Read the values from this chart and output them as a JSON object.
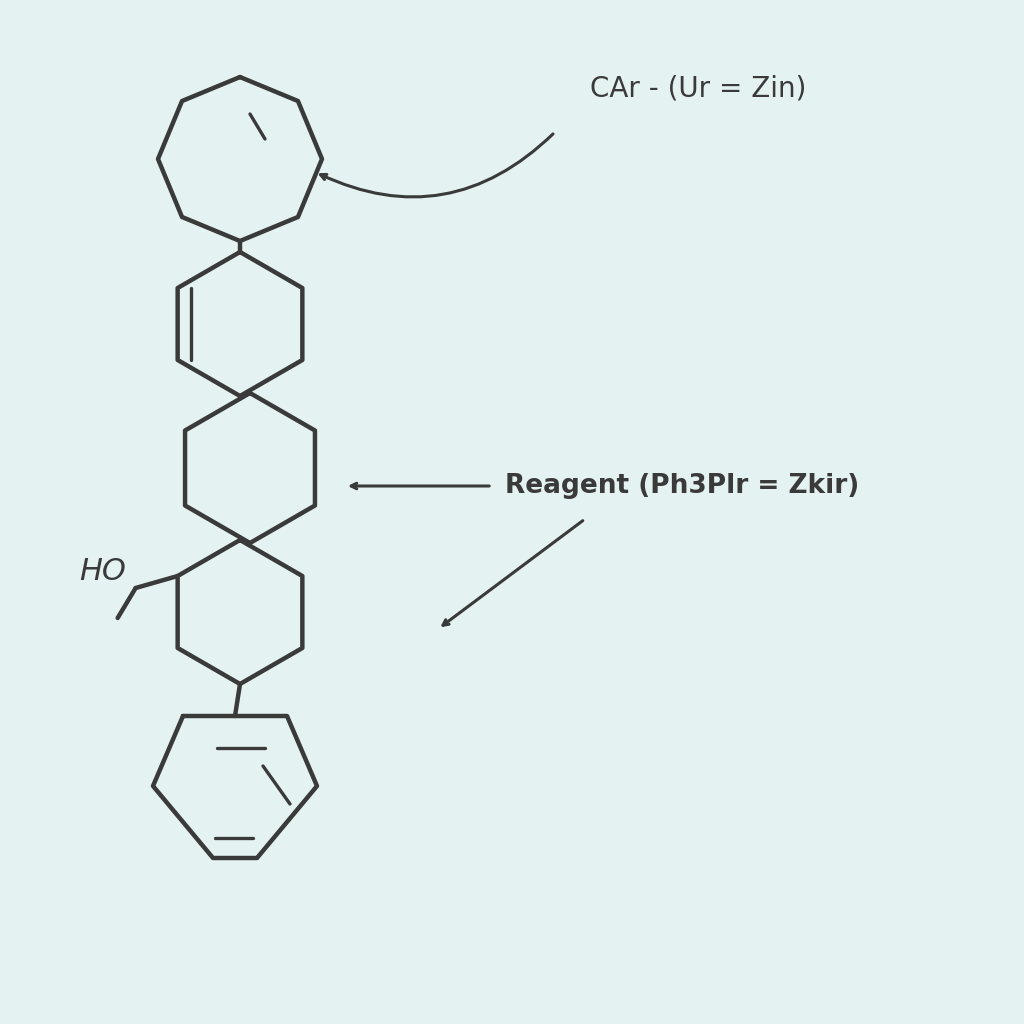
{
  "background_color": "#e5f2f2",
  "line_color": "#3a3a3a",
  "line_width": 3.2,
  "annotation1_text": "CAr - (Ur = Zin)",
  "annotation2_text": "Reagent (Ph3Plr = Zkir)",
  "ho_label": "HO"
}
